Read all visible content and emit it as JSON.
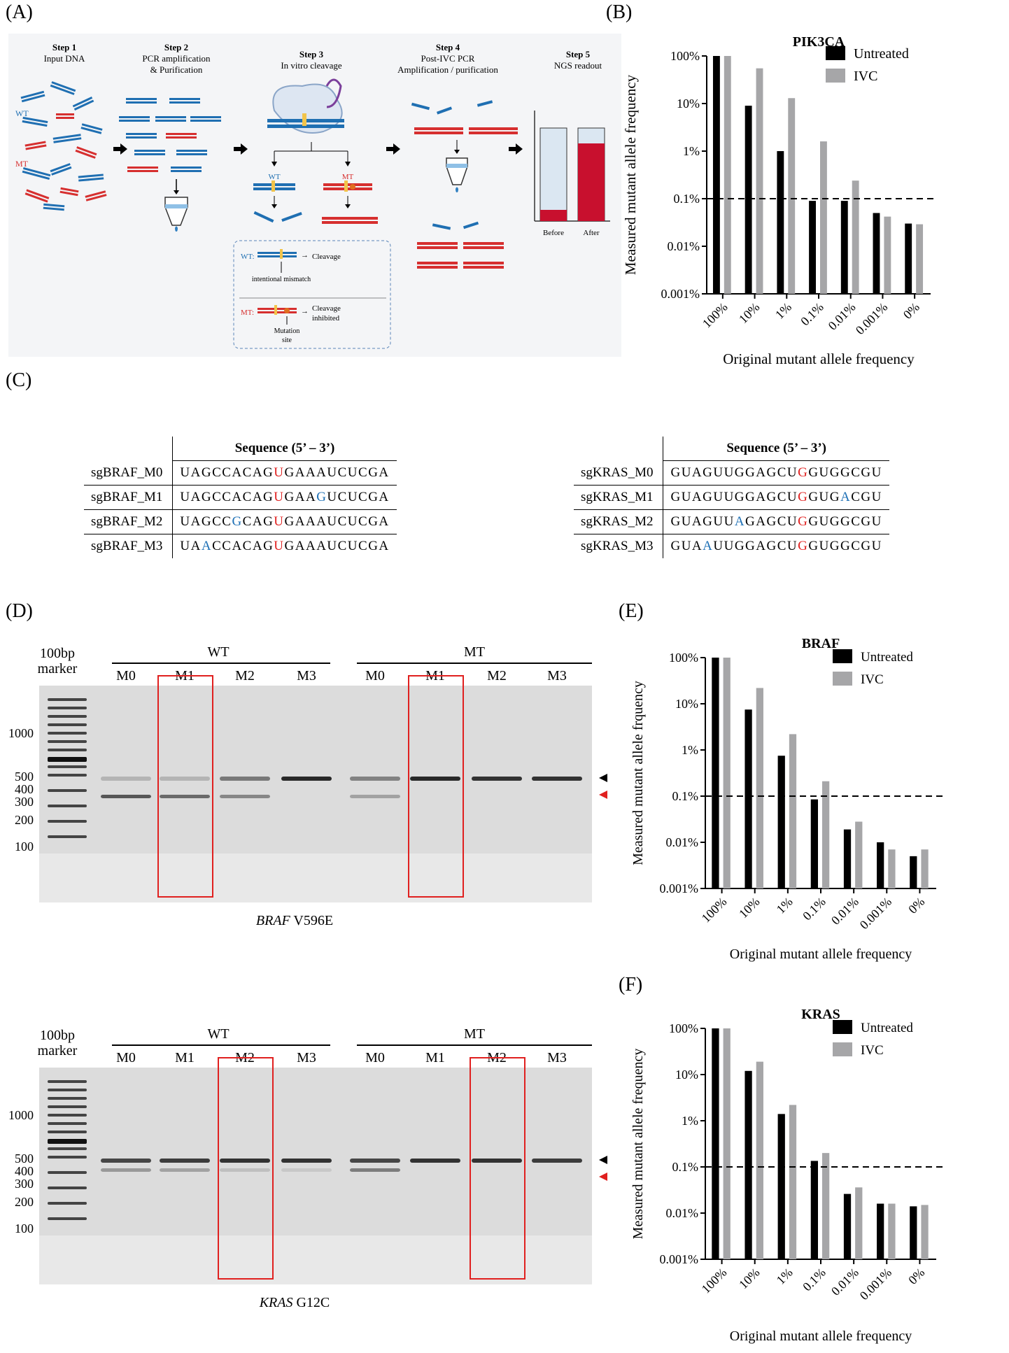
{
  "panel_labels": {
    "a": "(A)",
    "b": "(B)",
    "c": "(C)",
    "d": "(D)",
    "e": "(E)",
    "f": "(F)"
  },
  "workflow": {
    "steps": [
      {
        "num": "Step 1",
        "desc": [
          "Input DNA"
        ]
      },
      {
        "num": "Step 2",
        "desc": [
          "PCR amplification",
          "& Purification"
        ]
      },
      {
        "num": "Step 3",
        "desc": [
          "In vitro cleavage"
        ]
      },
      {
        "num": "Step 4",
        "desc": [
          "Post-IVC PCR",
          "Amplification / purification"
        ]
      },
      {
        "num": "Step 5",
        "desc": [
          "NGS readout"
        ]
      }
    ],
    "wt_label": "WT",
    "mt_label": "MT",
    "box": {
      "wt": "WT:",
      "mt": "MT:",
      "cleavage": "Cleavage",
      "cleavage_inhibited": [
        "Cleavage",
        "inhibited"
      ],
      "mismatch": "intentional mismatch",
      "mutation_site": [
        "Mutation",
        "site"
      ]
    },
    "before_label": "Before",
    "after_label": "After",
    "colors": {
      "wt": "#1f6fb2",
      "mt": "#d62f2f",
      "accent": "#c8102e"
    }
  },
  "sequences": {
    "header": "Sequence (5’ – 3’)",
    "braf": [
      {
        "name": "sgBRAF_M0",
        "parts": [
          [
            "UAGCCACAG",
            ""
          ],
          [
            "U",
            "red"
          ],
          [
            "GAAAUCUCGA",
            ""
          ]
        ]
      },
      {
        "name": "sgBRAF_M1",
        "parts": [
          [
            "UAGCCACAG",
            ""
          ],
          [
            "U",
            "red"
          ],
          [
            "GAA",
            ""
          ],
          [
            "G",
            "blue"
          ],
          [
            "UCUCGA",
            ""
          ]
        ]
      },
      {
        "name": "sgBRAF_M2",
        "parts": [
          [
            "UAGCC",
            ""
          ],
          [
            "G",
            "blue"
          ],
          [
            "CAG",
            ""
          ],
          [
            "U",
            "red"
          ],
          [
            "GAAAUCUCGA",
            ""
          ]
        ]
      },
      {
        "name": "sgBRAF_M3",
        "parts": [
          [
            "UA",
            ""
          ],
          [
            "A",
            "blue"
          ],
          [
            "CCACAG",
            ""
          ],
          [
            "U",
            "red"
          ],
          [
            "GAAAUCUCGA",
            ""
          ]
        ]
      }
    ],
    "kras": [
      {
        "name": "sgKRAS_M0",
        "parts": [
          [
            "GUAGUUGGAGCU",
            ""
          ],
          [
            "G",
            "red"
          ],
          [
            "GUGGCGU",
            ""
          ]
        ]
      },
      {
        "name": "sgKRAS_M1",
        "parts": [
          [
            "GUAGUUGGAGCU",
            ""
          ],
          [
            "G",
            "red"
          ],
          [
            "GUG",
            ""
          ],
          [
            "A",
            "blue"
          ],
          [
            "CGU",
            ""
          ]
        ]
      },
      {
        "name": "sgKRAS_M2",
        "parts": [
          [
            "GUAGUU",
            ""
          ],
          [
            "A",
            "blue"
          ],
          [
            "GAGCU",
            ""
          ],
          [
            "G",
            "red"
          ],
          [
            "GUGGCGU",
            ""
          ]
        ]
      },
      {
        "name": "sgKRAS_M3",
        "parts": [
          [
            "GUA",
            ""
          ],
          [
            "A",
            "blue"
          ],
          [
            "UUGGAGCU",
            ""
          ],
          [
            "G",
            "red"
          ],
          [
            "GUGGCGU",
            ""
          ]
        ]
      }
    ]
  },
  "gels": [
    {
      "marker": [
        "100bp",
        "marker"
      ],
      "wt": "WT",
      "mt": "MT",
      "lanes": [
        "M0",
        "M1",
        "M2",
        "M3",
        "M0",
        "M1",
        "M2",
        "M3"
      ],
      "ladder_labels": [
        "1000",
        "500",
        "400",
        "300",
        "200",
        "100"
      ],
      "caption_italic": "BRAF",
      "caption_rest": " V596E"
    },
    {
      "marker": [
        "100bp",
        "marker"
      ],
      "wt": "WT",
      "mt": "MT",
      "lanes": [
        "M0",
        "M1",
        "M2",
        "M3",
        "M0",
        "M1",
        "M2",
        "M3"
      ],
      "ladder_labels": [
        "1000",
        "500",
        "400",
        "300",
        "200",
        "100"
      ],
      "caption_italic": "KRAS",
      "caption_rest": " G12C"
    }
  ],
  "chart_data": [
    {
      "type": "bar",
      "title": "PIK3CA",
      "xlabel": "Original mutant allele frequency",
      "ylabel": "Measured mutant allele frequency",
      "categories": [
        "100%",
        "10%",
        "1%",
        "0.1%",
        "0.01%",
        "0.001%",
        "0%"
      ],
      "series": [
        {
          "name": "Untreated",
          "color": "#000000",
          "values": [
            100,
            9,
            1,
            0.09,
            0.09,
            0.05,
            0.03
          ]
        },
        {
          "name": "IVC",
          "color": "#a6a6a8",
          "values": [
            100,
            55,
            13,
            1.6,
            0.24,
            0.042,
            0.029
          ]
        }
      ],
      "yscale": "log",
      "ylim": [
        0.001,
        100
      ],
      "yticks": [
        "0.001%",
        "0.01%",
        "0.1%",
        "1%",
        "10%",
        "100%"
      ],
      "threshold": 0.1,
      "legend": "top-right"
    },
    {
      "type": "bar",
      "title": "BRAF",
      "xlabel": "Original mutant allele frequency",
      "ylabel": "Measured mutant allele frquency",
      "categories": [
        "100%",
        "10%",
        "1%",
        "0.1%",
        "0.01%",
        "0.001%",
        "0%"
      ],
      "series": [
        {
          "name": "Untreated",
          "color": "#000000",
          "values": [
            100,
            7.5,
            0.75,
            0.085,
            0.019,
            0.01,
            0.005
          ]
        },
        {
          "name": "IVC",
          "color": "#a6a6a8",
          "values": [
            100,
            22,
            2.2,
            0.21,
            0.028,
            0.007,
            0.007
          ]
        }
      ],
      "yscale": "log",
      "ylim": [
        0.001,
        100
      ],
      "yticks": [
        "0.001%",
        "0.01%",
        "0.1%",
        "1%",
        "10%",
        "100%"
      ],
      "threshold": 0.1,
      "legend": "top-right"
    },
    {
      "type": "bar",
      "title": "KRAS",
      "xlabel": "Original mutant allele frequency",
      "ylabel": "Measured mutant allele frequency",
      "categories": [
        "100%",
        "10%",
        "1%",
        "0.1%",
        "0.01%",
        "0.001%",
        "0%"
      ],
      "series": [
        {
          "name": "Untreated",
          "color": "#000000",
          "values": [
            100,
            12,
            1.4,
            0.135,
            0.026,
            0.016,
            0.014
          ]
        },
        {
          "name": "IVC",
          "color": "#a6a6a8",
          "values": [
            100,
            19,
            2.2,
            0.2,
            0.036,
            0.016,
            0.015
          ]
        }
      ],
      "yscale": "log",
      "ylim": [
        0.001,
        100
      ],
      "yticks": [
        "0.001%",
        "0.01%",
        "0.1%",
        "1%",
        "10%",
        "100%"
      ],
      "threshold": 0.1,
      "legend": "top-right"
    }
  ]
}
